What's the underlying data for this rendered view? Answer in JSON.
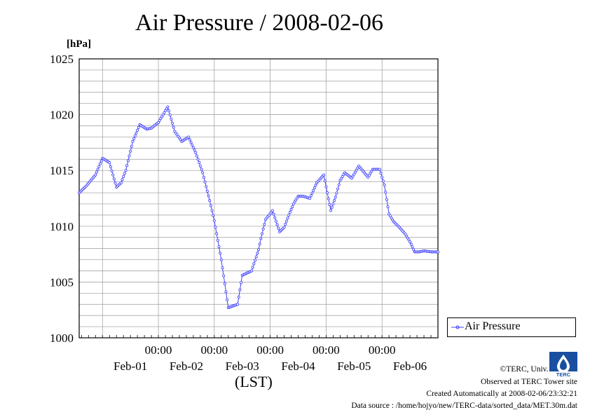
{
  "header": {
    "title": "Air Pressure / 2008-02-06"
  },
  "axes": {
    "y_unit": "[hPa]",
    "x_unit": "(LST)",
    "y_ticks": [
      "1000",
      "1005",
      "1010",
      "1015",
      "1020",
      "1025"
    ],
    "x_time_ticks": [
      "00:00",
      "00:00",
      "00:00",
      "00:00",
      "00:00"
    ],
    "x_date_labels": [
      "Feb-01",
      "Feb-02",
      "Feb-03",
      "Feb-04",
      "Feb-05",
      "Feb-06"
    ]
  },
  "legend": {
    "label": "Air Pressure"
  },
  "footer": {
    "copyright": "©TERC, Univ. Tsukuba",
    "observed": "Observed at TERC Tower site",
    "created": "Created Automatically at 2008-02-06/23:32:21",
    "source": "Data source : /home/hojyo/new/TERC-data/sorted_data/MET.30m.dat"
  },
  "logo": {
    "icon": "terc-logo",
    "text": "TERC"
  },
  "colors": {
    "series": "#4040ff",
    "grid": "#999999",
    "axis": "#000000"
  },
  "chart_data": {
    "type": "line",
    "title": "Air Pressure / 2008-02-06",
    "ylabel": "[hPa]",
    "xlabel": "(LST)",
    "ylim": [
      1000,
      1025
    ],
    "xlim_hours_from_2008-01-31_00:00": [
      14,
      168
    ],
    "grid": true,
    "legend_position": "right",
    "series": [
      {
        "name": "Air Pressure",
        "x_hours": [
          14,
          17,
          21,
          24,
          27,
          30,
          32,
          34,
          37,
          40,
          43,
          45,
          48,
          52,
          55,
          58,
          61,
          62,
          64,
          67,
          70,
          72,
          75,
          78,
          82,
          84,
          86,
          88,
          91,
          92,
          94,
          97,
          100,
          102,
          104,
          106,
          108,
          110,
          113,
          116,
          119,
          122,
          124,
          126,
          128,
          131,
          134,
          138,
          140,
          143,
          145,
          147,
          149,
          151,
          154,
          156,
          158,
          160,
          162,
          165,
          168
        ],
        "values": [
          1013.0,
          1013.6,
          1014.6,
          1016.1,
          1015.7,
          1013.5,
          1013.9,
          1015.0,
          1017.6,
          1019.1,
          1018.7,
          1018.8,
          1019.3,
          1020.7,
          1018.5,
          1017.6,
          1018.0,
          1017.5,
          1016.6,
          1014.8,
          1012.3,
          1010.5,
          1007.0,
          1002.7,
          1003.0,
          1005.6,
          1005.8,
          1006.0,
          1007.9,
          1008.9,
          1010.6,
          1011.4,
          1009.5,
          1009.9,
          1011.0,
          1012.0,
          1012.7,
          1012.7,
          1012.5,
          1013.9,
          1014.6,
          1011.4,
          1012.6,
          1014.1,
          1014.8,
          1014.3,
          1015.4,
          1014.4,
          1015.1,
          1015.1,
          1013.7,
          1011.1,
          1010.4,
          1010.0,
          1009.3,
          1008.6,
          1007.7,
          1007.7,
          1007.8,
          1007.7,
          1007.7
        ]
      }
    ]
  }
}
